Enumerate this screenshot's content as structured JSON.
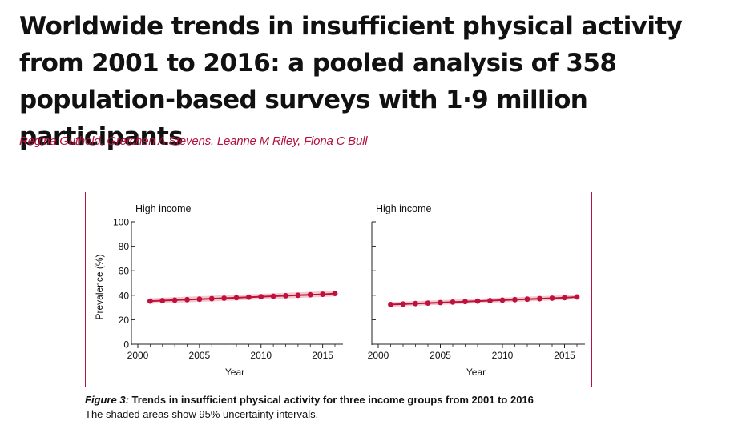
{
  "paper": {
    "title": "Worldwide trends in insufficient physical activity from 2001 to 2016: a pooled analysis of 358 population-based surveys with 1·9 million participants",
    "authors": "Regina Guthold, Gretchen A Stevens, Leanne M Riley, Fiona C Bull"
  },
  "figure": {
    "label": "Figure 3:",
    "title": "Trends in insufficient physical activity for three income groups from 2001 to 2016",
    "note": "The shaded areas show 95% uncertainty intervals."
  },
  "colors": {
    "accent": "#b5123f",
    "band": "#f2c9cf",
    "line": "#c0103c"
  },
  "chart_data": [
    {
      "type": "line",
      "title": "High income",
      "xlabel": "Year",
      "ylabel": "Prevalence (%)",
      "xlim": [
        2000,
        2016
      ],
      "ylim": [
        0,
        100
      ],
      "xticks": [
        "2000",
        "2005",
        "2010",
        "2015"
      ],
      "yticks": [
        "0",
        "20",
        "40",
        "60",
        "80",
        "100"
      ],
      "x": [
        2001,
        2002,
        2003,
        2004,
        2005,
        2006,
        2007,
        2008,
        2009,
        2010,
        2011,
        2012,
        2013,
        2014,
        2015,
        2016
      ],
      "series": [
        {
          "values": [
            35.2,
            35.6,
            36.0,
            36.4,
            36.8,
            37.2,
            37.6,
            38.0,
            38.4,
            38.8,
            39.2,
            39.6,
            40.0,
            40.4,
            40.8,
            41.4
          ],
          "lower": [
            33.0,
            33.4,
            33.8,
            34.2,
            34.6,
            35.0,
            35.4,
            35.8,
            36.2,
            36.6,
            37.0,
            37.4,
            37.8,
            38.2,
            38.6,
            39.1
          ],
          "upper": [
            37.6,
            38.0,
            38.4,
            38.8,
            39.2,
            39.6,
            40.0,
            40.4,
            40.8,
            41.2,
            41.6,
            42.0,
            42.4,
            42.8,
            43.2,
            43.8
          ]
        }
      ],
      "grid": false
    },
    {
      "type": "line",
      "title": "High income",
      "xlabel": "Year",
      "ylabel": "",
      "xlim": [
        2000,
        2016
      ],
      "ylim": [
        0,
        100
      ],
      "xticks": [
        "2000",
        "2005",
        "2010",
        "2015"
      ],
      "yticks": [
        "",
        "",
        "",
        "",
        "",
        ""
      ],
      "x": [
        2001,
        2002,
        2003,
        2004,
        2005,
        2006,
        2007,
        2008,
        2009,
        2010,
        2011,
        2012,
        2013,
        2014,
        2015,
        2016
      ],
      "series": [
        {
          "values": [
            32.4,
            32.8,
            33.2,
            33.6,
            34.0,
            34.4,
            34.8,
            35.2,
            35.6,
            36.0,
            36.4,
            36.8,
            37.2,
            37.6,
            38.0,
            38.6
          ],
          "lower": [
            30.6,
            31.0,
            31.4,
            31.8,
            32.2,
            32.6,
            33.0,
            33.4,
            33.8,
            34.2,
            34.6,
            35.0,
            35.4,
            35.8,
            36.2,
            36.7
          ],
          "upper": [
            34.4,
            34.8,
            35.2,
            35.6,
            36.0,
            36.4,
            36.8,
            37.2,
            37.6,
            38.0,
            38.4,
            38.8,
            39.2,
            39.6,
            40.0,
            40.6
          ]
        }
      ],
      "grid": false
    }
  ]
}
